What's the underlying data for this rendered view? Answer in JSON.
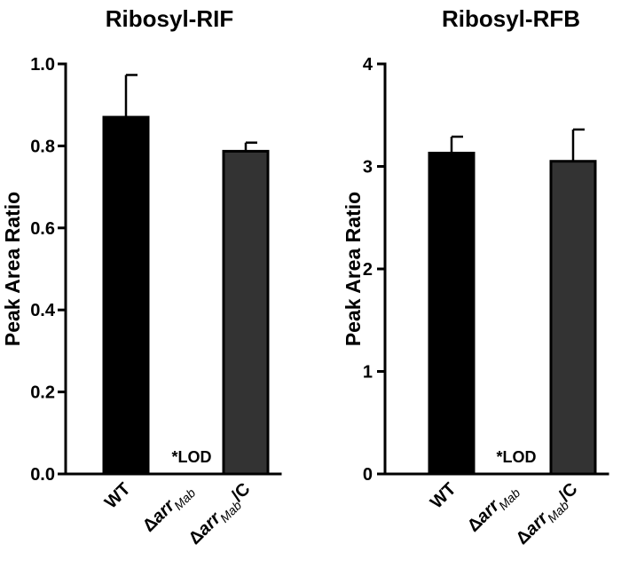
{
  "chart_data": [
    {
      "type": "bar",
      "title": "Ribosyl-RIF",
      "ylabel": "Peak Area Ratio",
      "xlabel": "",
      "ylim": [
        0,
        1.0
      ],
      "yticks": [
        "0.0",
        "0.2",
        "0.4",
        "0.6",
        "0.8",
        "1.0"
      ],
      "categories": [
        {
          "main": "WT",
          "sub": "",
          "suffix": ""
        },
        {
          "main": "Δarr",
          "sub": "Mab",
          "suffix": ""
        },
        {
          "main": "Δarr",
          "sub": "Mab",
          "suffix": "/C"
        }
      ],
      "values": [
        0.87,
        0.0,
        0.787
      ],
      "errors": [
        0.103,
        0.0,
        0.021
      ],
      "colors": [
        "#000000",
        "#ffffff",
        "#333333"
      ],
      "annotation": "*LOD"
    },
    {
      "type": "bar",
      "title": "Ribosyl-RFB",
      "ylabel": "Peak Area Ratio",
      "xlabel": "",
      "ylim": [
        0,
        4
      ],
      "yticks": [
        "0",
        "1",
        "2",
        "3",
        "4"
      ],
      "categories": [
        {
          "main": "WT",
          "sub": "",
          "suffix": ""
        },
        {
          "main": "Δarr",
          "sub": "Mab",
          "suffix": ""
        },
        {
          "main": "Δarr",
          "sub": "Mab",
          "suffix": "/C"
        }
      ],
      "values": [
        3.13,
        0.0,
        3.05
      ],
      "errors": [
        0.16,
        0.0,
        0.31
      ],
      "colors": [
        "#000000",
        "#ffffff",
        "#333333"
      ],
      "annotation": "*LOD"
    }
  ]
}
